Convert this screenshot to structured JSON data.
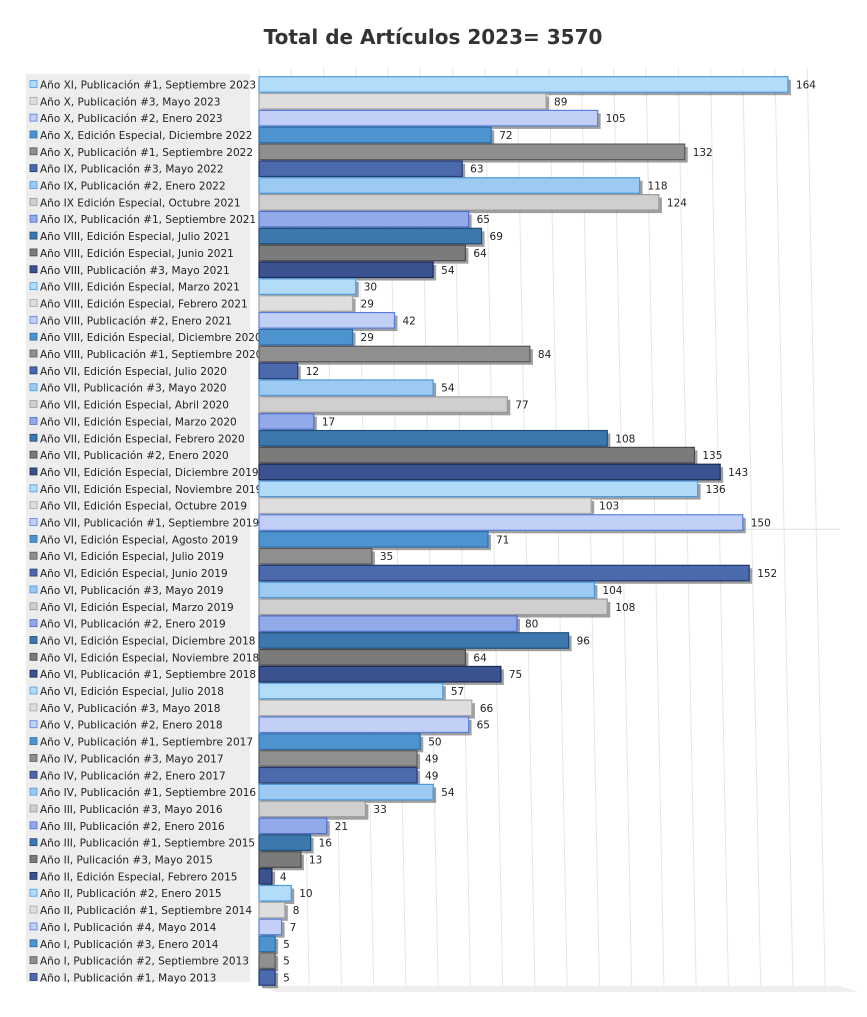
{
  "chart_data": {
    "type": "bar",
    "orientation": "horizontal",
    "title": "Total de Artículos 2023= 3570",
    "legend": "none",
    "grid": true,
    "xlim": [
      0,
      170
    ],
    "categories": [
      "Año XI, Publicación #1, Septiembre 2023",
      "Año X, Publicación #3, Mayo 2023",
      "Año X, Publicación #2, Enero 2023",
      "Año X, Edición Especial, Diciembre 2022",
      "Año X, Publicación #1, Septiembre 2022",
      "Año IX, Publicación #3, Mayo 2022",
      "Año IX, Publicación #2, Enero 2022",
      "Año IX Edición Especial, Octubre 2021",
      "Año IX, Publicación #1, Septiembre 2021",
      "Año VIII, Edición Especial, Julio 2021",
      "Año VIII, Edición Especial, Junio 2021",
      "Año VIII, Publicación #3, Mayo 2021",
      "Año VIII, Edición Especial, Marzo 2021",
      "Año VIII, Edición Especial, Febrero 2021",
      "Año VIII, Publicación #2, Enero 2021",
      "Año VIII, Edición Especial, Diciembre 2020",
      "Año VIII, Publicación #1, Septiembre 2020",
      "Año VII, Edición Especial, Julio 2020",
      "Año VII, Publicación #3, Mayo 2020",
      "Año VII, Edición Especial, Abril 2020",
      "Año VII, Edición Especial, Marzo 2020",
      "Año VII, Edición Especial, Febrero 2020",
      "Año VII, Publicación #2, Enero 2020",
      "Año VII, Edición Especial, Diciembre 2019",
      "Año VII, Edición Especial, Noviembre 2019",
      "Año VII, Edición Especial, Octubre 2019",
      "Año VII, Publicación #1, Septiembre 2019",
      "Año VI, Edición Especial, Agosto 2019",
      "Año VI, Edición Especial, Julio 2019",
      "Año VI, Edición Especial, Junio 2019",
      "Año VI, Publicación #3, Mayo 2019",
      "Año VI, Edición Especial, Marzo 2019",
      "Año VI, Publicación #2, Enero 2019",
      "Año VI, Edición Especial, Diciembre 2018",
      "Año VI, Edición Especial, Noviembre 2018",
      "Año VI, Publicación #1, Septiembre 2018",
      "Año VI, Edición Especial, Julio 2018",
      "Año V, Publicación #3, Mayo 2018",
      "Año V, Publicación #2, Enero 2018",
      "Año V, Publicación #1, Septiembre 2017",
      "Año IV, Publicación #3, Mayo 2017",
      "Año IV, Publicación #2, Enero 2017",
      "Año IV, Publicación #1, Septiembre 2016",
      "Año III, Publicación #3, Mayo 2016",
      "Año III, Publicación #2, Enero 2016",
      "Año III, Publicación #1, Septiembre 2015",
      "Año II, Pulicación #3, Mayo 2015",
      "Año II, Edición Especial, Febrero 2015",
      "Año II, Publicación #2, Enero 2015",
      "Año II, Publicación #1, Septiembre 2014",
      "Año I, Publicación #4, Mayo 2014",
      "Año I, Publicación #3, Enero 2014",
      "Año I, Publicación #2, Septiembre 2013",
      "Año I, Publicación #1, Mayo 2013"
    ],
    "values": [
      164,
      89,
      105,
      72,
      132,
      63,
      118,
      124,
      65,
      69,
      64,
      54,
      30,
      29,
      42,
      29,
      84,
      12,
      54,
      77,
      17,
      108,
      135,
      143,
      136,
      103,
      150,
      71,
      35,
      152,
      104,
      108,
      80,
      96,
      64,
      75,
      57,
      66,
      65,
      50,
      49,
      49,
      54,
      33,
      21,
      16,
      13,
      4,
      10,
      8,
      7,
      5,
      5,
      5
    ],
    "color_cycle": [
      {
        "fill": "#b3dcfb",
        "stroke": "#4f9bde"
      },
      {
        "fill": "#dedede",
        "stroke": "#a7a7a7"
      },
      {
        "fill": "#c2d0f8",
        "stroke": "#5b7fd9"
      },
      {
        "fill": "#4d93cf",
        "stroke": "#2f6ea8"
      },
      {
        "fill": "#8f8f8f",
        "stroke": "#5a5a5a"
      },
      {
        "fill": "#4b6aae",
        "stroke": "#233a72"
      },
      {
        "fill": "#9ccaf2",
        "stroke": "#4e96d9"
      },
      {
        "fill": "#cfcfcf",
        "stroke": "#9b9b9b"
      },
      {
        "fill": "#92aae9",
        "stroke": "#4d6fcc"
      },
      {
        "fill": "#3c77ad",
        "stroke": "#1f4e7a"
      },
      {
        "fill": "#7b7b7b",
        "stroke": "#4a4a4a"
      },
      {
        "fill": "#3a528f",
        "stroke": "#1b2b55"
      }
    ]
  }
}
